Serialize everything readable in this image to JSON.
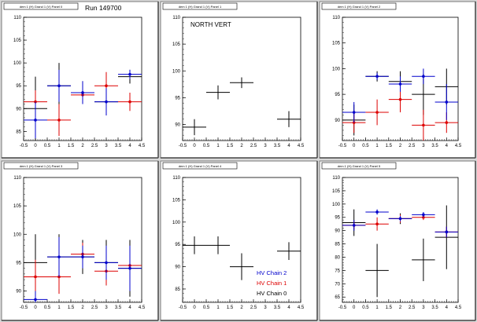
{
  "run_label": "Run 149700",
  "chart_data": [
    {
      "type": "scatter",
      "title": "dem 1 (H) Grand 1 (V) Panel 0",
      "annotation": "",
      "xlim": [
        -0.5,
        4.5
      ],
      "ylim": [
        83,
        110
      ],
      "xticks": [
        -0.5,
        0,
        0.5,
        1,
        1.5,
        2,
        2.5,
        3,
        3.5,
        4,
        4.5
      ],
      "yticks": [
        85,
        90,
        95,
        100,
        105,
        110
      ],
      "series": [
        {
          "color": "#000000",
          "points": [
            {
              "x": 0,
              "y": 90.0,
              "ex": 0.5,
              "ey": 7.0
            },
            {
              "x": 1,
              "y": 95.0,
              "ex": 0.5,
              "ey": 5.0
            },
            {
              "x": 2,
              "y": 93.5,
              "ex": 0.5,
              "ey": 2.5
            },
            {
              "x": 3,
              "y": 91.5,
              "ex": 0.5,
              "ey": 2.5
            },
            {
              "x": 4,
              "y": 97.0,
              "ex": 0.5,
              "ey": 1.5
            }
          ]
        },
        {
          "color": "#dd0000",
          "points": [
            {
              "x": 0,
              "y": 91.5,
              "ex": 0.5,
              "ey": 2.5
            },
            {
              "x": 1,
              "y": 87.5,
              "ex": 0.5,
              "ey": 3.5
            },
            {
              "x": 2,
              "y": 93.0,
              "ex": 0.5,
              "ey": 2.0
            },
            {
              "x": 3,
              "y": 95.0,
              "ex": 0.5,
              "ey": 3.0
            },
            {
              "x": 4,
              "y": 91.5,
              "ex": 0.5,
              "ey": 2.0
            }
          ]
        },
        {
          "color": "#0000cc",
          "points": [
            {
              "x": 0,
              "y": 87.5,
              "ex": 0.5,
              "ey": 4.0
            },
            {
              "x": 1,
              "y": 95.0,
              "ex": 0.5,
              "ey": 3.5
            },
            {
              "x": 2,
              "y": 93.5,
              "ex": 0.5,
              "ey": 2.5
            },
            {
              "x": 3,
              "y": 91.5,
              "ex": 0.5,
              "ey": 3.0
            },
            {
              "x": 4,
              "y": 97.5,
              "ex": 0.5,
              "ey": 1.0
            }
          ]
        }
      ]
    },
    {
      "type": "scatter",
      "title": "dem 1 (H) Grand 1 (V) Panel 1",
      "annotation": "NORTH VERT",
      "xlim": [
        -0.5,
        4.5
      ],
      "ylim": [
        87,
        110
      ],
      "xticks": [
        -0.5,
        0,
        0.5,
        1,
        1.5,
        2,
        2.5,
        3,
        3.5,
        4,
        4.5
      ],
      "yticks": [
        90,
        95,
        100,
        105,
        110
      ],
      "series": [
        {
          "color": "#000000",
          "points": [
            {
              "x": 0,
              "y": 89.5,
              "ex": 0.5,
              "ey": 1.5
            },
            {
              "x": 1,
              "y": 96.0,
              "ex": 0.5,
              "ey": 1.3
            },
            {
              "x": 2,
              "y": 97.8,
              "ex": 0.5,
              "ey": 1.0
            },
            {
              "x": 4,
              "y": 91.0,
              "ex": 0.5,
              "ey": 1.5
            }
          ]
        }
      ]
    },
    {
      "type": "scatter",
      "title": "dem 1 (H) Grand 1 (V) Panel 2",
      "annotation": "",
      "xlim": [
        -0.5,
        4.5
      ],
      "ylim": [
        86,
        110
      ],
      "xticks": [
        -0.5,
        0,
        0.5,
        1,
        1.5,
        2,
        2.5,
        3,
        3.5,
        4,
        4.5
      ],
      "yticks": [
        90,
        95,
        100,
        105,
        110
      ],
      "series": [
        {
          "color": "#000000",
          "points": [
            {
              "x": 0,
              "y": 90.0,
              "ex": 0.5,
              "ey": 3.0
            },
            {
              "x": 1,
              "y": 98.5,
              "ex": 0.5,
              "ey": 1.0
            },
            {
              "x": 2,
              "y": 97.5,
              "ex": 0.5,
              "ey": 2.0
            },
            {
              "x": 3,
              "y": 95.0,
              "ex": 0.5,
              "ey": 4.0
            },
            {
              "x": 4,
              "y": 96.5,
              "ex": 0.5,
              "ey": 3.5
            }
          ]
        },
        {
          "color": "#dd0000",
          "points": [
            {
              "x": 0,
              "y": 89.5,
              "ex": 0.5,
              "ey": 2.0
            },
            {
              "x": 1,
              "y": 91.5,
              "ex": 0.5,
              "ey": 2.5
            },
            {
              "x": 2,
              "y": 94.0,
              "ex": 0.5,
              "ey": 2.5
            },
            {
              "x": 3,
              "y": 89.0,
              "ex": 0.5,
              "ey": 3.0
            },
            {
              "x": 4,
              "y": 89.5,
              "ex": 0.5,
              "ey": 2.0
            }
          ]
        },
        {
          "color": "#0000cc",
          "points": [
            {
              "x": 0,
              "y": 91.5,
              "ex": 0.5,
              "ey": 2.0
            },
            {
              "x": 1,
              "y": 98.5,
              "ex": 0.5,
              "ey": 0.7
            },
            {
              "x": 2,
              "y": 97.0,
              "ex": 0.5,
              "ey": 1.5
            },
            {
              "x": 3,
              "y": 98.5,
              "ex": 0.5,
              "ey": 1.5
            },
            {
              "x": 4,
              "y": 93.5,
              "ex": 0.5,
              "ey": 3.5
            }
          ]
        }
      ]
    },
    {
      "type": "scatter",
      "title": "dem 1 (H) Grand 1 (V) Panel 3",
      "annotation": "",
      "xlim": [
        -0.5,
        4.5
      ],
      "ylim": [
        88,
        110
      ],
      "xticks": [
        -0.5,
        0,
        0.5,
        1,
        1.5,
        2,
        2.5,
        3,
        3.5,
        4,
        4.5
      ],
      "yticks": [
        90,
        95,
        100,
        105,
        110
      ],
      "series": [
        {
          "color": "#000000",
          "points": [
            {
              "x": 0,
              "y": 95.0,
              "ex": 0.5,
              "ey": 5.0
            },
            {
              "x": 1,
              "y": 96.0,
              "ex": 0.5,
              "ey": 4.0
            },
            {
              "x": 2,
              "y": 96.0,
              "ex": 0.5,
              "ey": 3.0
            },
            {
              "x": 3,
              "y": 95.0,
              "ex": 0.5,
              "ey": 4.0
            },
            {
              "x": 4,
              "y": 94.0,
              "ex": 0.5,
              "ey": 5.0
            }
          ]
        },
        {
          "color": "#dd0000",
          "points": [
            {
              "x": 0,
              "y": 92.5,
              "ex": 0.5,
              "ey": 3.0
            },
            {
              "x": 1,
              "y": 92.5,
              "ex": 0.5,
              "ey": 3.0
            },
            {
              "x": 2,
              "y": 96.5,
              "ex": 0.5,
              "ey": 2.0
            },
            {
              "x": 3,
              "y": 93.5,
              "ex": 0.5,
              "ey": 2.5
            },
            {
              "x": 4,
              "y": 94.5,
              "ex": 0.5,
              "ey": 2.0
            }
          ]
        },
        {
          "color": "#0000cc",
          "points": [
            {
              "x": 0,
              "y": 88.5,
              "ex": 0.5,
              "ey": 1.5
            },
            {
              "x": 1,
              "y": 96.0,
              "ex": 0.5,
              "ey": 3.5
            },
            {
              "x": 2,
              "y": 96.0,
              "ex": 0.5,
              "ey": 2.0
            },
            {
              "x": 3,
              "y": 95.0,
              "ex": 0.5,
              "ey": 3.0
            },
            {
              "x": 4,
              "y": 94.0,
              "ex": 0.5,
              "ey": 4.0
            }
          ]
        }
      ]
    },
    {
      "type": "scatter",
      "title": "dem 1 (H) Grand 1 (V) Panel 4",
      "annotation": "",
      "xlim": [
        -0.5,
        4.5
      ],
      "ylim": [
        82,
        110
      ],
      "xticks": [
        -0.5,
        0,
        0.5,
        1,
        1.5,
        2,
        2.5,
        3,
        3.5,
        4,
        4.5
      ],
      "yticks": [
        85,
        90,
        95,
        100,
        105,
        110
      ],
      "legend": [
        {
          "label": "HV Chain 2",
          "color": "#0000cc"
        },
        {
          "label": "HV Chain 1",
          "color": "#dd0000"
        },
        {
          "label": "HV Chain 0",
          "color": "#000000"
        }
      ],
      "series": [
        {
          "color": "#000000",
          "points": [
            {
              "x": 0,
              "y": 94.8,
              "ex": 0.5,
              "ey": 2.0
            },
            {
              "x": 1,
              "y": 94.8,
              "ex": 0.5,
              "ey": 2.0
            },
            {
              "x": 2,
              "y": 90.0,
              "ex": 0.5,
              "ey": 3.0
            },
            {
              "x": 4,
              "y": 93.5,
              "ex": 0.5,
              "ey": 2.0
            }
          ]
        }
      ]
    },
    {
      "type": "scatter",
      "title": "dem 1 (H) Grand 1 (V) Panel 5",
      "annotation": "",
      "xlim": [
        -0.5,
        4.5
      ],
      "ylim": [
        63,
        110
      ],
      "xticks": [
        -0.5,
        0,
        0.5,
        1,
        1.5,
        2,
        2.5,
        3,
        3.5,
        4,
        4.5
      ],
      "yticks": [
        65,
        70,
        75,
        80,
        85,
        90,
        95,
        100,
        105,
        110
      ],
      "series": [
        {
          "color": "#000000",
          "points": [
            {
              "x": 0,
              "y": 93.0,
              "ex": 0.5,
              "ey": 5.0
            },
            {
              "x": 1,
              "y": 75.0,
              "ex": 0.5,
              "ey": 10.0
            },
            {
              "x": 2,
              "y": 94.5,
              "ex": 0.5,
              "ey": 2.0
            },
            {
              "x": 3,
              "y": 79.0,
              "ex": 0.5,
              "ey": 8.0
            },
            {
              "x": 4,
              "y": 87.5,
              "ex": 0.5,
              "ey": 12.0
            }
          ]
        },
        {
          "color": "#dd0000",
          "points": [
            {
              "x": 0,
              "y": 92.0,
              "ex": 0.5,
              "ey": 1.5
            },
            {
              "x": 1,
              "y": 92.5,
              "ex": 0.5,
              "ey": 2.5
            },
            {
              "x": 2,
              "y": 94.5,
              "ex": 0.5,
              "ey": 1.5
            },
            {
              "x": 3,
              "y": 95.0,
              "ex": 0.5,
              "ey": 1.0
            },
            {
              "x": 4,
              "y": 89.5,
              "ex": 0.5,
              "ey": 2.0
            }
          ]
        },
        {
          "color": "#0000cc",
          "points": [
            {
              "x": 0,
              "y": 92.0,
              "ex": 0.5,
              "ey": 2.0
            },
            {
              "x": 1,
              "y": 97.0,
              "ex": 0.5,
              "ey": 1.0
            },
            {
              "x": 2,
              "y": 94.5,
              "ex": 0.5,
              "ey": 1.0
            },
            {
              "x": 3,
              "y": 96.0,
              "ex": 0.5,
              "ey": 1.0
            },
            {
              "x": 4,
              "y": 89.5,
              "ex": 0.5,
              "ey": 2.0
            }
          ]
        }
      ]
    }
  ]
}
